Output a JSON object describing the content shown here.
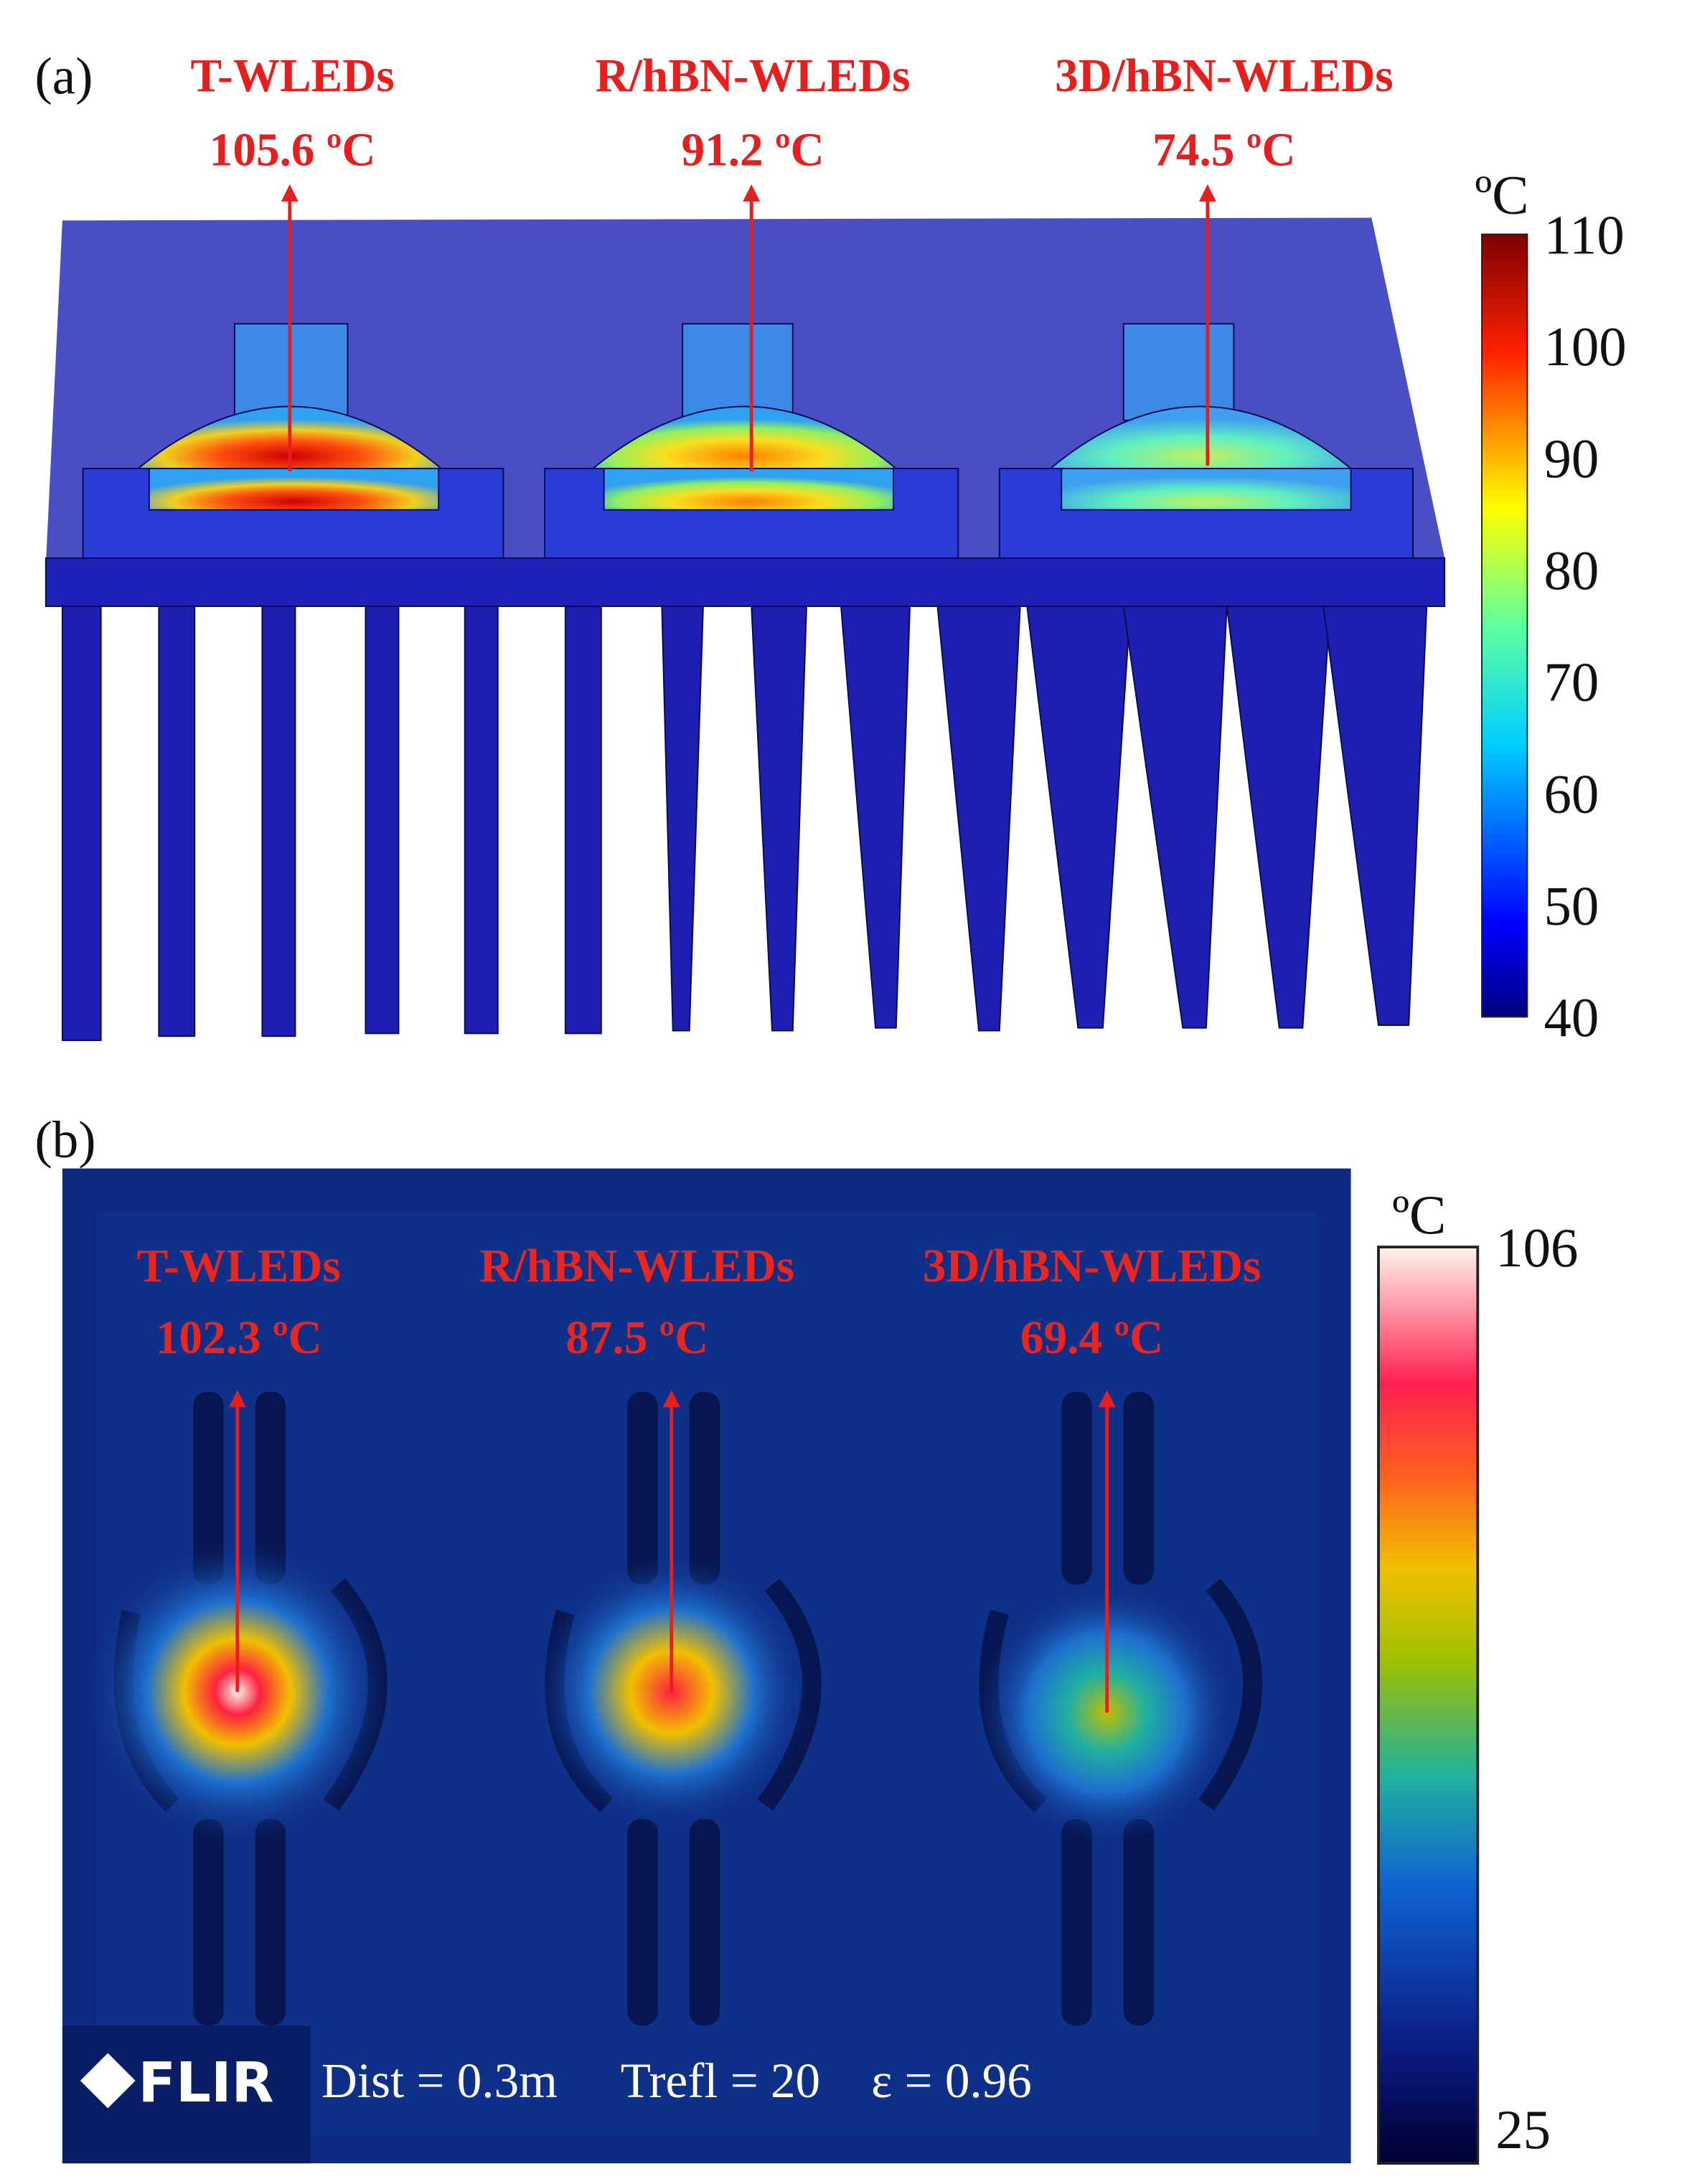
{
  "panel_a": {
    "label": "(a)",
    "leds": [
      {
        "name": "T-WLEDs",
        "temperature": "105.6 ºC"
      },
      {
        "name": "R/hBN-WLEDs",
        "temperature": "91.2 ºC"
      },
      {
        "name": "3D/hBN-WLEDs",
        "temperature": "74.5 ºC"
      }
    ],
    "colorbar": {
      "unit": "ºC",
      "ticks": [
        110,
        100,
        90,
        80,
        70,
        60,
        50,
        40
      ]
    }
  },
  "panel_b": {
    "label": "(b)",
    "leds": [
      {
        "name": "T-WLEDs",
        "temperature": "102.3 ºC"
      },
      {
        "name": "R/hBN-WLEDs",
        "temperature": "87.5 ºC"
      },
      {
        "name": "3D/hBN-WLEDs",
        "temperature": "69.4 ºC"
      }
    ],
    "colorbar": {
      "unit": "ºC",
      "ticks": [
        106,
        25
      ]
    },
    "footer": {
      "brand": "FLIR",
      "distance": "Dist = 0.3m",
      "reflected_temperature": "Trefl = 20",
      "emissivity": "ε = 0.96"
    }
  }
}
